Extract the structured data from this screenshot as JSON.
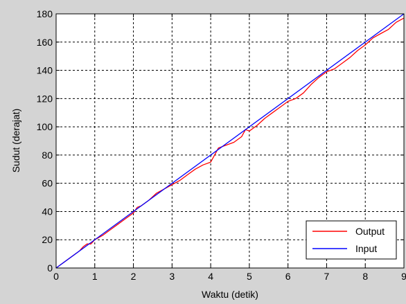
{
  "chart_data": {
    "type": "line",
    "title": "",
    "xlabel": "Waktu (detik)",
    "ylabel": "Sudut (derajat)",
    "xlim": [
      0,
      9
    ],
    "ylim": [
      0,
      180
    ],
    "xticks": [
      0,
      1,
      2,
      3,
      4,
      5,
      6,
      7,
      8,
      9
    ],
    "yticks": [
      0,
      20,
      40,
      60,
      80,
      100,
      120,
      140,
      160,
      180
    ],
    "grid": true,
    "legend": "bottom-right",
    "series": [
      {
        "name": "Output",
        "color": "#ff0000",
        "x": [
          0,
          0.2,
          0.4,
          0.6,
          0.7,
          0.8,
          0.9,
          1.0,
          1.2,
          1.4,
          1.6,
          1.8,
          2.0,
          2.1,
          2.2,
          2.4,
          2.6,
          2.8,
          3.0,
          3.2,
          3.4,
          3.6,
          3.8,
          4.0,
          4.1,
          4.2,
          4.4,
          4.6,
          4.8,
          4.9,
          5.0,
          5.2,
          5.4,
          5.6,
          5.8,
          6.0,
          6.2,
          6.4,
          6.6,
          6.8,
          7.0,
          7.2,
          7.4,
          7.6,
          7.8,
          8.0,
          8.2,
          8.4,
          8.6,
          8.8,
          9.0
        ],
        "y": [
          0,
          4,
          8,
          12,
          15,
          17,
          17,
          20,
          23,
          27,
          31,
          35,
          39,
          43,
          44,
          48,
          53,
          56,
          59,
          62,
          66,
          70,
          73,
          75,
          80,
          85,
          87,
          89,
          93,
          98,
          97,
          101,
          106,
          110,
          114,
          118,
          120,
          124,
          130,
          135,
          139,
          141,
          145,
          149,
          154,
          158,
          163,
          166,
          169,
          174,
          177
        ]
      },
      {
        "name": "Input",
        "color": "#0000ff",
        "x": [
          0,
          9
        ],
        "y": [
          0,
          180
        ]
      }
    ]
  }
}
